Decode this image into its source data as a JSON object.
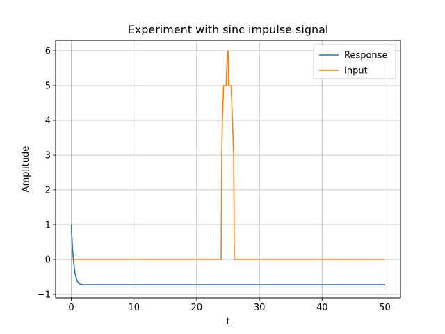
{
  "chart_data": {
    "type": "line",
    "title": "Experiment with sinc impulse signal",
    "xlabel": "t",
    "ylabel": "Amplitude",
    "xlim": [
      -2.5,
      52.5
    ],
    "ylim": [
      -1.1,
      6.3
    ],
    "xticks": [
      0,
      10,
      20,
      30,
      40,
      50
    ],
    "yticks": [
      -1,
      0,
      1,
      2,
      3,
      4,
      5,
      6
    ],
    "grid": true,
    "legend_position": "top-right",
    "series": [
      {
        "name": "Response",
        "color": "#1f77b4",
        "x": [
          0,
          0.2,
          0.4,
          0.6,
          0.8,
          1.0,
          1.2,
          1.5,
          2.0,
          3.0,
          5.0,
          10,
          20,
          30,
          40,
          50
        ],
        "y": [
          1.0,
          0.3,
          -0.12,
          -0.4,
          -0.55,
          -0.63,
          -0.68,
          -0.71,
          -0.72,
          -0.72,
          -0.72,
          -0.72,
          -0.72,
          -0.72,
          -0.72,
          -0.72
        ]
      },
      {
        "name": "Input",
        "color": "#ff7f0e",
        "x": [
          0,
          23.9,
          24.0,
          24.1,
          24.3,
          24.5,
          24.7,
          24.9,
          25.0,
          25.1,
          25.3,
          25.5,
          25.7,
          25.9,
          26.0,
          26.1,
          50
        ],
        "y": [
          0,
          0,
          3.0,
          4.0,
          5.0,
          5.0,
          5.0,
          6.0,
          6.0,
          5.0,
          5.0,
          5.0,
          4.0,
          3.0,
          0,
          0,
          0
        ]
      }
    ]
  }
}
